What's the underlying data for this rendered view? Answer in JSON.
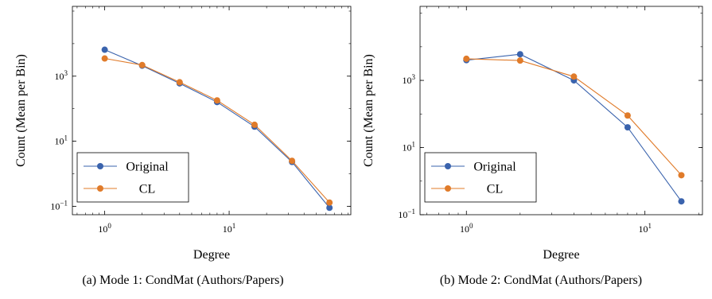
{
  "charts": [
    {
      "caption": "(a) Mode 1: CondMat (Authors/Papers)",
      "xlabel": "Degree",
      "ylabel": "Count (Mean per Bin)",
      "legend": [
        "Original",
        "CL"
      ]
    },
    {
      "caption": "(b) Mode 2: CondMat (Authors/Papers)",
      "xlabel": "Degree",
      "ylabel": "Count (Mean per Bin)",
      "legend": [
        "Original",
        "CL"
      ]
    }
  ],
  "chart_data": [
    {
      "type": "line",
      "title": "",
      "xlabel": "Degree",
      "ylabel": "Count (Mean per Bin)",
      "xscale": "log",
      "yscale": "log",
      "xlim": [
        0.55,
        95
      ],
      "ylim": [
        0.055,
        140000
      ],
      "xticks": [
        {
          "v": 1,
          "b": "10",
          "e": "0"
        },
        {
          "v": 10,
          "b": "10",
          "e": "1"
        }
      ],
      "yticks": [
        {
          "v": 0.1,
          "b": "10",
          "e": "−1"
        },
        {
          "v": 10,
          "b": "10",
          "e": "1"
        },
        {
          "v": 1000,
          "b": "10",
          "e": "3"
        }
      ],
      "grid": false,
      "legend_position": "bottom-left",
      "series": [
        {
          "name": "Original",
          "color": "#3a63ad",
          "x": [
            1,
            2,
            4,
            8,
            16,
            32,
            64
          ],
          "y": [
            6500,
            2100,
            600,
            160,
            28,
            2.3,
            0.09
          ]
        },
        {
          "name": "CL",
          "color": "#e07b2a",
          "x": [
            1,
            2,
            4,
            8,
            16,
            32,
            64
          ],
          "y": [
            3500,
            2200,
            650,
            180,
            32,
            2.5,
            0.13
          ]
        }
      ]
    },
    {
      "type": "line",
      "title": "",
      "xlabel": "Degree",
      "ylabel": "Count (Mean per Bin)",
      "xscale": "log",
      "yscale": "log",
      "xlim": [
        0.55,
        21
      ],
      "ylim": [
        0.1,
        160000
      ],
      "xticks": [
        {
          "v": 1,
          "b": "10",
          "e": "0"
        },
        {
          "v": 10,
          "b": "10",
          "e": "1"
        }
      ],
      "yticks": [
        {
          "v": 0.1,
          "b": "10",
          "e": "−1"
        },
        {
          "v": 10,
          "b": "10",
          "e": "1"
        },
        {
          "v": 1000,
          "b": "10",
          "e": "3"
        }
      ],
      "grid": false,
      "legend_position": "bottom-left",
      "series": [
        {
          "name": "Original",
          "color": "#3a63ad",
          "x": [
            1,
            2,
            4,
            8,
            16
          ],
          "y": [
            4000,
            6000,
            1000,
            40,
            0.25
          ]
        },
        {
          "name": "CL",
          "color": "#e07b2a",
          "x": [
            1,
            2,
            4,
            8,
            16
          ],
          "y": [
            4400,
            3900,
            1300,
            90,
            1.5
          ]
        }
      ]
    }
  ]
}
